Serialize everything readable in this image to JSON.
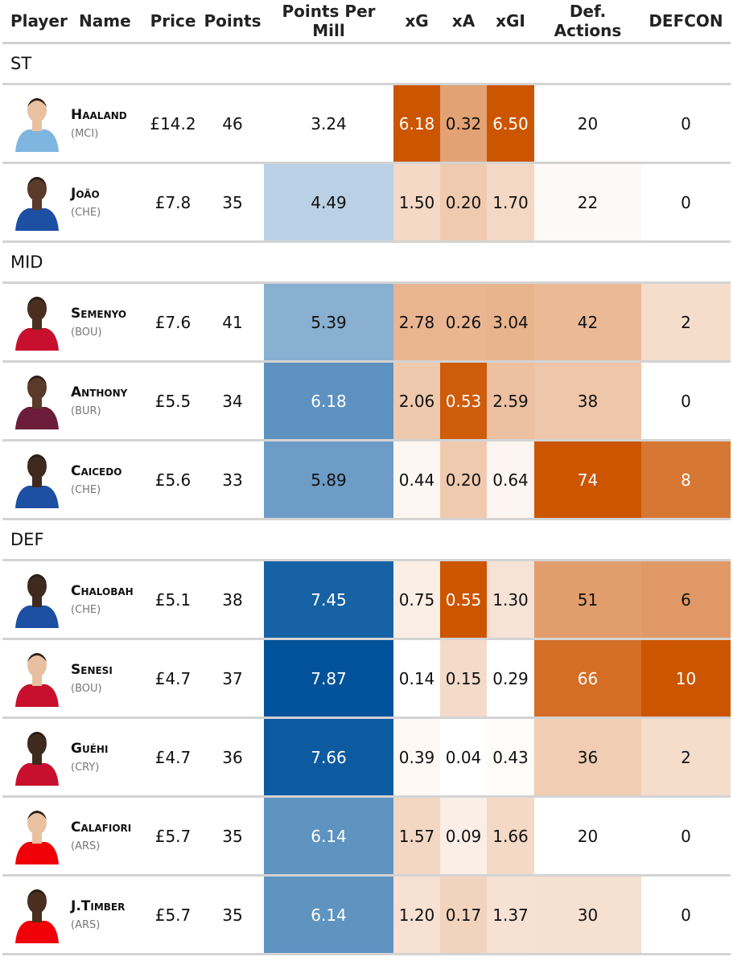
{
  "table": {
    "columns": [
      "Player",
      "Name",
      "Price",
      "Points",
      "Points Per Mill",
      "xG",
      "xA",
      "xGI",
      "Def. Actions",
      "DEFCON"
    ],
    "groups": [
      {
        "label": "ST",
        "rows": [
          [
            "Haaland",
            "(MCI)",
            "£14.2",
            "46",
            "3.24",
            "6.18",
            "0.32",
            "6.50",
            "20",
            "0"
          ],
          [
            "João",
            "(CHE)",
            "£7.8",
            "35",
            "4.49",
            "1.50",
            "0.20",
            "1.70",
            "22",
            "0"
          ]
        ]
      },
      {
        "label": "MID",
        "rows": [
          [
            "Semenyo",
            "(BOU)",
            "£7.6",
            "41",
            "5.39",
            "2.78",
            "0.26",
            "3.04",
            "42",
            "2"
          ],
          [
            "Anthony",
            "(BUR)",
            "£5.5",
            "34",
            "6.18",
            "2.06",
            "0.53",
            "2.59",
            "38",
            "0"
          ],
          [
            "Caicedo",
            "(CHE)",
            "£5.6",
            "33",
            "5.89",
            "0.44",
            "0.20",
            "0.64",
            "74",
            "8"
          ]
        ]
      },
      {
        "label": "DEF",
        "rows": [
          [
            "Chalobah",
            "(CHE)",
            "£5.1",
            "38",
            "7.45",
            "0.75",
            "0.55",
            "1.30",
            "51",
            "6"
          ],
          [
            "Senesi",
            "(BOU)",
            "£4.7",
            "37",
            "7.87",
            "0.14",
            "0.15",
            "0.29",
            "66",
            "10"
          ],
          [
            "Guéhi",
            "(CRY)",
            "£4.7",
            "36",
            "7.66",
            "0.39",
            "0.04",
            "0.43",
            "36",
            "2"
          ],
          [
            "Calafiori",
            "(ARS)",
            "£5.7",
            "35",
            "6.14",
            "1.57",
            "0.09",
            "1.66",
            "20",
            "0"
          ],
          [
            "J.Timber",
            "(ARS)",
            "£5.7",
            "35",
            "6.14",
            "1.20",
            "0.17",
            "1.37",
            "30",
            "0"
          ]
        ]
      }
    ],
    "heat_colors": {
      "4": "#00529b",
      "5": "#cc5500",
      "6": "#cc5500",
      "7": "#cc5500",
      "8": "#cc5500",
      "9": "#cc5500"
    }
  }
}
